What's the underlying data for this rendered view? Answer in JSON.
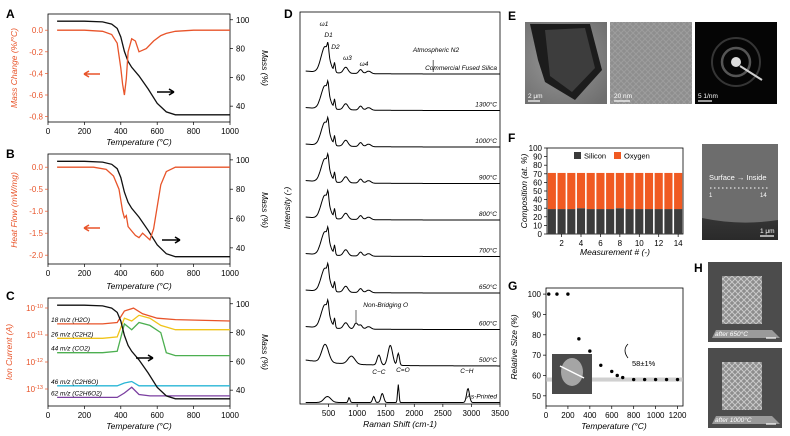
{
  "colors": {
    "black": "#111111",
    "orange": "#e8542a",
    "gray_blue": "#3a3a3a",
    "silicon": "#3b3b3b",
    "oxygen": "#f05a22"
  },
  "panels": {
    "A": "A",
    "B": "B",
    "C": "C",
    "D": "D",
    "E": "E",
    "F": "F",
    "G": "G",
    "H": "H"
  },
  "chart_data": [
    {
      "id": "A",
      "type": "line",
      "title": "",
      "xlabel": "Temperature (°C)",
      "ylabel_left": "Mass Change (%/°C)",
      "ylabel_right": "Mass (%)",
      "xlim": [
        0,
        1000
      ],
      "ylim_left": [
        -0.85,
        0.15
      ],
      "ylim_right": [
        29,
        104
      ],
      "xticks": [
        0,
        200,
        400,
        600,
        800,
        1000
      ],
      "yticks_left": [
        0.0,
        -0.2,
        -0.4,
        -0.6,
        -0.8
      ],
      "yticks_right": [
        100,
        80,
        60,
        40
      ],
      "series": [
        {
          "name": "Mass",
          "axis": "right",
          "x": [
            50,
            200,
            300,
            350,
            380,
            400,
            420,
            440,
            460,
            500,
            550,
            600,
            650,
            700,
            800,
            1000
          ],
          "y": [
            99,
            99,
            98.5,
            97,
            94,
            88,
            78,
            71,
            67,
            61,
            52,
            42,
            36,
            34,
            34,
            34
          ]
        },
        {
          "name": "Mass Change",
          "axis": "left",
          "x": [
            50,
            200,
            300,
            350,
            380,
            400,
            410,
            420,
            430,
            440,
            460,
            480,
            500,
            540,
            580,
            620,
            650,
            700,
            800,
            1000
          ],
          "y": [
            0,
            0,
            -0.01,
            -0.04,
            -0.12,
            -0.35,
            -0.5,
            -0.6,
            -0.45,
            -0.2,
            -0.08,
            -0.1,
            -0.2,
            -0.17,
            -0.1,
            -0.05,
            -0.03,
            -0.01,
            0,
            0
          ]
        }
      ]
    },
    {
      "id": "B",
      "type": "line",
      "title": "",
      "xlabel": "Temperature (°C)",
      "ylabel_left": "Heat Flow (mW/mg)",
      "ylabel_right": "Mass (%)",
      "xlim": [
        0,
        1000
      ],
      "ylim_left": [
        -2.2,
        0.3
      ],
      "ylim_right": [
        29,
        104
      ],
      "xticks": [
        0,
        200,
        400,
        600,
        800,
        1000
      ],
      "yticks_left": [
        0.0,
        -0.5,
        -1.0,
        -1.5,
        -2.0
      ],
      "yticks_right": [
        100,
        80,
        60,
        40
      ],
      "series": [
        {
          "name": "Mass",
          "axis": "right",
          "x": [
            50,
            200,
            300,
            350,
            380,
            400,
            420,
            440,
            460,
            500,
            550,
            600,
            650,
            700,
            800,
            1000
          ],
          "y": [
            99,
            99,
            98.5,
            97,
            94,
            88,
            78,
            71,
            67,
            61,
            52,
            42,
            36,
            34,
            34,
            34
          ]
        },
        {
          "name": "Heat Flow",
          "axis": "left",
          "x": [
            50,
            250,
            320,
            360,
            390,
            410,
            420,
            430,
            440,
            460,
            480,
            500,
            520,
            560,
            580,
            600,
            620,
            650,
            700,
            800,
            1000
          ],
          "y": [
            0,
            0,
            -0.05,
            -0.2,
            -0.5,
            -1.0,
            -1.15,
            -1.1,
            -1.35,
            -1.45,
            -1.55,
            -1.6,
            -1.5,
            -1.65,
            -1.4,
            -0.9,
            -0.4,
            -0.1,
            0,
            0,
            0
          ]
        }
      ]
    },
    {
      "id": "C",
      "type": "line",
      "title": "",
      "xlabel": "Temperature (°C)",
      "ylabel_left": "Ion Current (A)",
      "ylabel_right": "Mass (%)",
      "xlim": [
        0,
        1000
      ],
      "ylim_right": [
        29,
        104
      ],
      "xticks": [
        0,
        200,
        400,
        600,
        800,
        1000
      ],
      "yticks_left": [
        "10^-10",
        "10^-11",
        "10^-12",
        "10^-13"
      ],
      "yticks_right": [
        100,
        80,
        60,
        40
      ],
      "series": [
        {
          "name": "18 m/z (H2O)",
          "color": "#e8542a",
          "x": [
            50,
            300,
            380,
            420,
            470,
            520,
            600,
            700,
            1000
          ],
          "y": [
            86,
            86,
            87,
            95,
            97,
            93,
            90,
            89,
            88
          ]
        },
        {
          "name": "26 m/z (C2H2)",
          "color": "#f0c419",
          "x": [
            50,
            300,
            380,
            420,
            460,
            500,
            560,
            620,
            700,
            1000
          ],
          "y": [
            76,
            76,
            77,
            90,
            88,
            92,
            90,
            85,
            82,
            82
          ]
        },
        {
          "name": "44 m/z (CO2)",
          "color": "#4caf50",
          "x": [
            50,
            300,
            380,
            420,
            460,
            500,
            560,
            620,
            650,
            700,
            1000
          ],
          "y": [
            66,
            66,
            67,
            86,
            82,
            87,
            85,
            80,
            66,
            64,
            64
          ]
        },
        {
          "name": "46 m/z (C2H6O)",
          "color": "#29b6d6",
          "x": [
            50,
            380,
            420,
            460,
            500,
            1000
          ],
          "y": [
            43,
            43,
            45,
            46,
            43,
            43
          ]
        },
        {
          "name": "62 m/z (C2H6O2)",
          "color": "#7b3fa0",
          "x": [
            50,
            380,
            420,
            460,
            500,
            560,
            1000
          ],
          "y": [
            35,
            35,
            38,
            42,
            37,
            36,
            36
          ]
        },
        {
          "name": "Mass",
          "color": "#111111",
          "x": [
            50,
            200,
            300,
            350,
            380,
            400,
            420,
            440,
            460,
            500,
            550,
            600,
            650,
            700,
            800,
            1000
          ],
          "y": [
            99,
            99,
            98.5,
            97,
            94,
            88,
            78,
            71,
            67,
            61,
            52,
            42,
            36,
            34,
            34,
            34
          ]
        }
      ],
      "legend": [
        "18 m/z (H2O)",
        "26 m/z (C2H2)",
        "44 m/z (CO2)",
        "46 m/z (C2H6O)",
        "62 m/z (C2H6O2)"
      ]
    },
    {
      "id": "D",
      "type": "line",
      "title": "",
      "xlabel": "Raman Shift (cm-1)",
      "ylabel": "Intensity (-)",
      "xlim": [
        0,
        3500
      ],
      "xticks": [
        500,
        1000,
        1500,
        2000,
        2500,
        3000,
        3500
      ],
      "series_labels": [
        "Commercial Fused Silica",
        "1300°C",
        "1000°C",
        "900°C",
        "800°C",
        "700°C",
        "650°C",
        "600°C",
        "500°C",
        "As-Printed"
      ],
      "annotations": [
        "Atmospheric N2",
        "Non-Bridging O",
        "C−C",
        "C=O",
        "C−H",
        "ω1",
        "D1",
        "ω3",
        "ω4",
        "D2"
      ]
    },
    {
      "id": "F",
      "type": "bar",
      "title": "",
      "xlabel": "Measurement # (-)",
      "ylabel": "Composition (at. %)",
      "ylim": [
        0,
        100
      ],
      "yticks": [
        0,
        10,
        20,
        30,
        40,
        50,
        60,
        70,
        80,
        90,
        100
      ],
      "xticks": [
        2,
        4,
        6,
        8,
        10,
        12,
        14
      ],
      "categories": [
        1,
        2,
        3,
        4,
        5,
        6,
        7,
        8,
        9,
        10,
        11,
        12,
        13,
        14
      ],
      "series": [
        {
          "name": "Silicon",
          "values": [
            29,
            29,
            29,
            30,
            29,
            29,
            29,
            30,
            29,
            29,
            29,
            29,
            29,
            29
          ]
        },
        {
          "name": "Oxygen",
          "values": [
            42,
            42,
            42,
            41,
            42,
            42,
            42,
            41,
            42,
            42,
            42,
            42,
            42,
            42
          ]
        }
      ]
    },
    {
      "id": "G",
      "type": "scatter",
      "title": "",
      "xlabel": "Temperature (°C)",
      "ylabel": "Relative Size (%)",
      "xlim": [
        0,
        1250
      ],
      "ylim": [
        45,
        103
      ],
      "xticks": [
        0,
        200,
        400,
        600,
        800,
        1000,
        1200
      ],
      "yticks": [
        50,
        60,
        70,
        80,
        90,
        100
      ],
      "x": [
        25,
        100,
        200,
        300,
        400,
        500,
        600,
        650,
        700,
        800,
        900,
        1000,
        1100,
        1200
      ],
      "y": [
        100,
        100,
        100,
        78,
        72,
        65,
        62,
        60,
        59,
        58,
        58,
        58,
        58,
        58
      ],
      "annotation": "58±1%"
    }
  ],
  "panelE": {
    "scales": [
      "2 μm",
      "20 nm",
      "5 1/nm"
    ]
  },
  "panelF": {
    "legend": [
      "Silicon",
      "Oxygen"
    ],
    "image_text": {
      "surface_to_inside": "Surface → Inside",
      "start": "1",
      "end": "14",
      "scale": "1 μm"
    }
  },
  "panelH": {
    "labels": [
      "after 650°C",
      "after 1000°C"
    ]
  }
}
